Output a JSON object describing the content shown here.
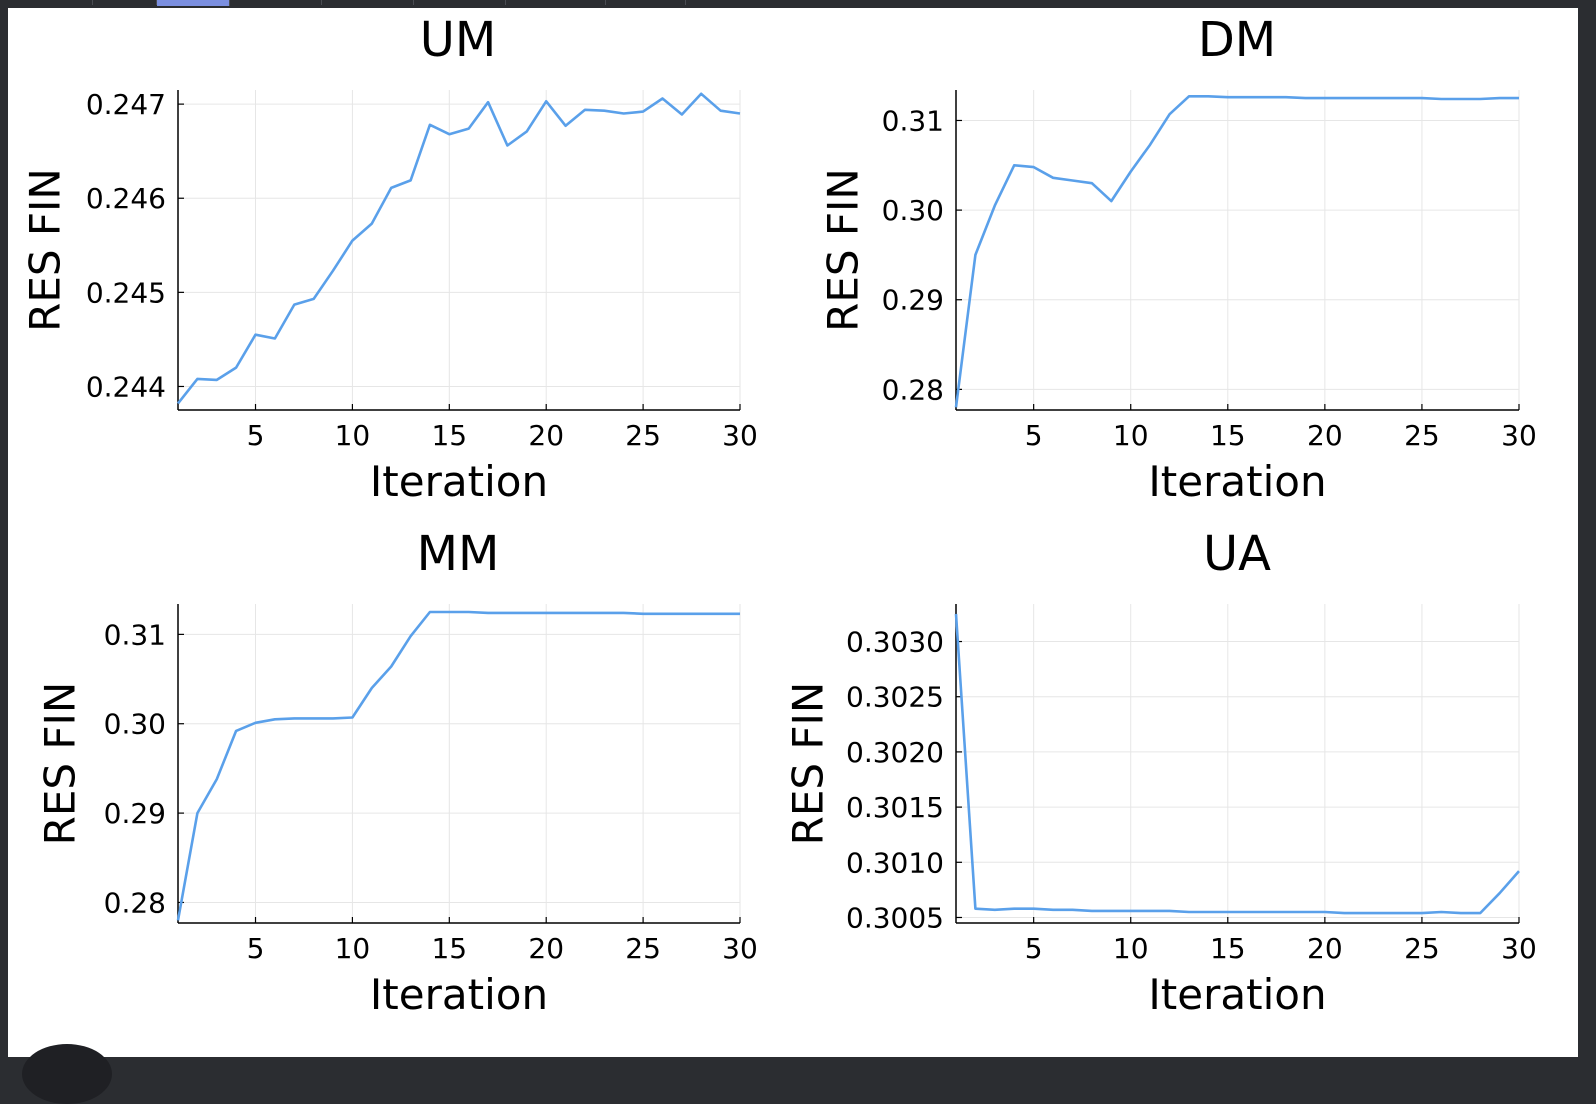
{
  "colors": {
    "series": "#5aa0ea",
    "axis": "#000000",
    "grid": "#e6e6e6",
    "background": "#ffffff",
    "chrome": "#2b2d31"
  },
  "chart_data": [
    {
      "type": "line",
      "title": "UM",
      "xlabel": "Iteration",
      "ylabel": "RES FIN",
      "xlim": [
        1,
        30
      ],
      "ylim": [
        0.24375,
        0.24715
      ],
      "xticks": [
        5,
        10,
        15,
        20,
        25,
        30
      ],
      "xtick_labels": [
        "5",
        "10",
        "15",
        "20",
        "25",
        "30"
      ],
      "yticks": [
        0.244,
        0.245,
        0.246,
        0.247
      ],
      "ytick_labels": [
        "0.244",
        "0.245",
        "0.246",
        "0.247"
      ],
      "grid": true,
      "x": [
        1,
        2,
        3,
        4,
        5,
        6,
        7,
        8,
        9,
        10,
        11,
        12,
        13,
        14,
        15,
        16,
        17,
        18,
        19,
        20,
        21,
        22,
        23,
        24,
        25,
        26,
        27,
        28,
        29,
        30
      ],
      "values": [
        0.24382,
        0.24408,
        0.24407,
        0.2442,
        0.24455,
        0.24451,
        0.24487,
        0.24493,
        0.24523,
        0.24555,
        0.24573,
        0.24611,
        0.24619,
        0.24678,
        0.24668,
        0.24674,
        0.24702,
        0.24656,
        0.24671,
        0.24703,
        0.24677,
        0.24694,
        0.24693,
        0.2469,
        0.24692,
        0.24706,
        0.24689,
        0.24711,
        0.24693,
        0.2469
      ]
    },
    {
      "type": "line",
      "title": "DM",
      "xlabel": "Iteration",
      "ylabel": "RES FIN",
      "xlim": [
        1,
        30
      ],
      "ylim": [
        0.2777,
        0.3134
      ],
      "xticks": [
        5,
        10,
        15,
        20,
        25,
        30
      ],
      "xtick_labels": [
        "5",
        "10",
        "15",
        "20",
        "25",
        "30"
      ],
      "yticks": [
        0.28,
        0.29,
        0.3,
        0.31
      ],
      "ytick_labels": [
        "0.28",
        "0.29",
        "0.30",
        "0.31"
      ],
      "grid": true,
      "x": [
        1,
        2,
        3,
        4,
        5,
        6,
        7,
        8,
        9,
        10,
        11,
        12,
        13,
        14,
        15,
        16,
        17,
        18,
        19,
        20,
        21,
        22,
        23,
        24,
        25,
        26,
        27,
        28,
        29,
        30
      ],
      "values": [
        0.278,
        0.295,
        0.3005,
        0.305,
        0.3048,
        0.3036,
        0.3033,
        0.303,
        0.301,
        0.3043,
        0.3073,
        0.3107,
        0.3127,
        0.3127,
        0.3126,
        0.3126,
        0.3126,
        0.3126,
        0.3125,
        0.3125,
        0.3125,
        0.3125,
        0.3125,
        0.3125,
        0.3125,
        0.3124,
        0.3124,
        0.3124,
        0.3125,
        0.3125
      ]
    },
    {
      "type": "line",
      "title": "MM",
      "xlabel": "Iteration",
      "ylabel": "RES FIN",
      "xlim": [
        1,
        30
      ],
      "ylim": [
        0.2777,
        0.3134
      ],
      "xticks": [
        5,
        10,
        15,
        20,
        25,
        30
      ],
      "xtick_labels": [
        "5",
        "10",
        "15",
        "20",
        "25",
        "30"
      ],
      "yticks": [
        0.28,
        0.29,
        0.3,
        0.31
      ],
      "ytick_labels": [
        "0.28",
        "0.29",
        "0.30",
        "0.31"
      ],
      "grid": true,
      "x": [
        1,
        2,
        3,
        4,
        5,
        6,
        7,
        8,
        9,
        10,
        11,
        12,
        13,
        14,
        15,
        16,
        17,
        18,
        19,
        20,
        21,
        22,
        23,
        24,
        25,
        26,
        27,
        28,
        29,
        30
      ],
      "values": [
        0.278,
        0.29,
        0.2938,
        0.2992,
        0.3001,
        0.3005,
        0.3006,
        0.3006,
        0.3006,
        0.3007,
        0.304,
        0.3064,
        0.3098,
        0.3125,
        0.3125,
        0.3125,
        0.3124,
        0.3124,
        0.3124,
        0.3124,
        0.3124,
        0.3124,
        0.3124,
        0.3124,
        0.3123,
        0.3123,
        0.3123,
        0.3123,
        0.3123,
        0.3123
      ]
    },
    {
      "type": "line",
      "title": "UA",
      "xlabel": "Iteration",
      "ylabel": "RES FIN",
      "xlim": [
        1,
        30
      ],
      "ylim": [
        0.30045,
        0.30334
      ],
      "xticks": [
        5,
        10,
        15,
        20,
        25,
        30
      ],
      "xtick_labels": [
        "5",
        "10",
        "15",
        "20",
        "25",
        "30"
      ],
      "yticks": [
        0.3005,
        0.301,
        0.3015,
        0.302,
        0.3025,
        0.303
      ],
      "ytick_labels": [
        "0.3005",
        "0.3010",
        "0.3015",
        "0.3020",
        "0.3025",
        "0.3030"
      ],
      "grid": true,
      "x": [
        1,
        2,
        3,
        4,
        5,
        6,
        7,
        8,
        9,
        10,
        11,
        12,
        13,
        14,
        15,
        16,
        17,
        18,
        19,
        20,
        21,
        22,
        23,
        24,
        25,
        26,
        27,
        28,
        29,
        30
      ],
      "values": [
        0.30325,
        0.30058,
        0.30057,
        0.30058,
        0.30058,
        0.30057,
        0.30057,
        0.30056,
        0.30056,
        0.30056,
        0.30056,
        0.30056,
        0.30055,
        0.30055,
        0.30055,
        0.30055,
        0.30055,
        0.30055,
        0.30055,
        0.30055,
        0.30054,
        0.30054,
        0.30054,
        0.30054,
        0.30054,
        0.30055,
        0.30054,
        0.30054,
        0.30072,
        0.30092
      ]
    }
  ]
}
